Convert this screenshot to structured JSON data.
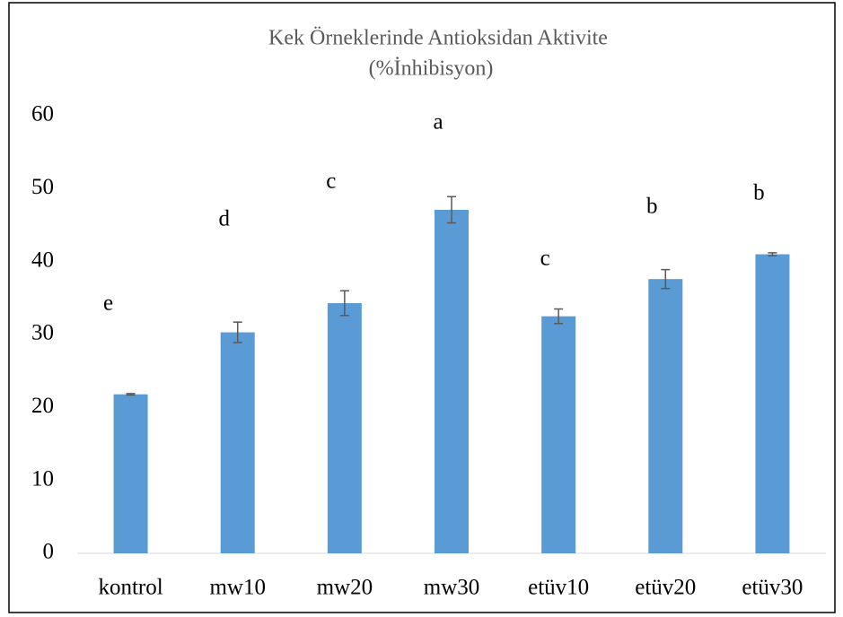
{
  "chart_data": {
    "type": "bar",
    "title": "Kek Örneklerinde Antioksidan Aktivite",
    "subtitle": "(%İnhibisyon)",
    "categories": [
      "kontrol",
      "mw10",
      "mw20",
      "mw30",
      "etüv10",
      "etüv20",
      "etüv30"
    ],
    "values": [
      21.8,
      30.3,
      34.3,
      47.1,
      32.5,
      37.6,
      41.0
    ],
    "errors": [
      0.1,
      1.4,
      1.7,
      1.8,
      1.0,
      1.3,
      0.2
    ],
    "annotations": [
      "e",
      "d",
      "c",
      "a",
      "c",
      "b",
      "b"
    ],
    "color": "#5b9bd5",
    "ylim": [
      0,
      60
    ],
    "yticks": [
      0,
      10,
      20,
      30,
      40,
      50,
      60
    ],
    "grid": false
  }
}
